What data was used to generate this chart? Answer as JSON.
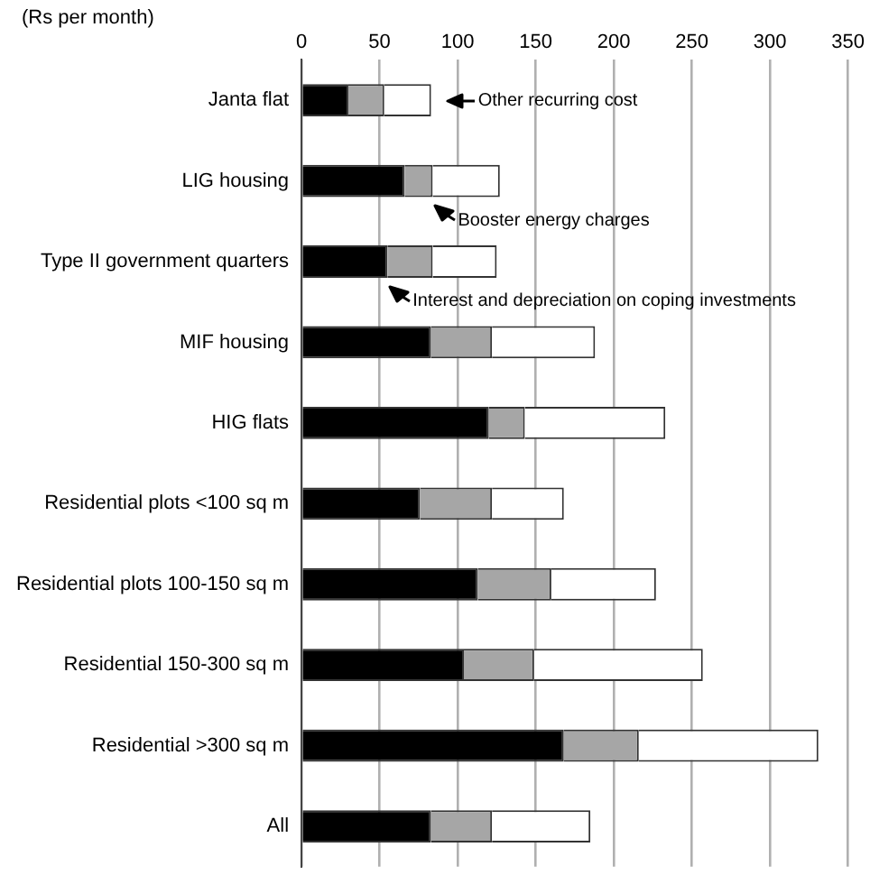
{
  "chart_data": {
    "type": "bar",
    "orientation": "horizontal",
    "stacked": true,
    "xlabel": "(Rs per month)",
    "categories": [
      "Janta flat",
      "LIG housing",
      "Type II government quarters",
      "MIF housing",
      "HIG flats",
      "Residential plots <100 sq m",
      "Residential plots 100-150 sq m",
      "Residential 150-300 sq m",
      "Residential >300 sq m",
      "All"
    ],
    "series": [
      {
        "color": "#000000",
        "values": [
          30,
          66,
          55,
          83,
          120,
          76,
          113,
          104,
          168,
          83
        ]
      },
      {
        "color": "#a6a6a6",
        "values": [
          23,
          18,
          29,
          39,
          23,
          46,
          47,
          45,
          48,
          39
        ]
      },
      {
        "color": "#ffffff",
        "values": [
          30,
          43,
          41,
          66,
          90,
          46,
          67,
          108,
          115,
          63
        ]
      }
    ],
    "xlim": [
      0,
      350
    ],
    "xticks": [
      0,
      50,
      100,
      150,
      200,
      250,
      300,
      350
    ],
    "annotations": [
      {
        "text": "Other recurring cost",
        "x": 83,
        "y": "Janta flat"
      },
      {
        "text": "Booster energy charges",
        "x": 84,
        "y": "LIG housing"
      },
      {
        "text": "Interest and depreciation on coping investments",
        "x": 55,
        "y": "Type II government quarters"
      }
    ],
    "grid": "x",
    "legend": false
  }
}
